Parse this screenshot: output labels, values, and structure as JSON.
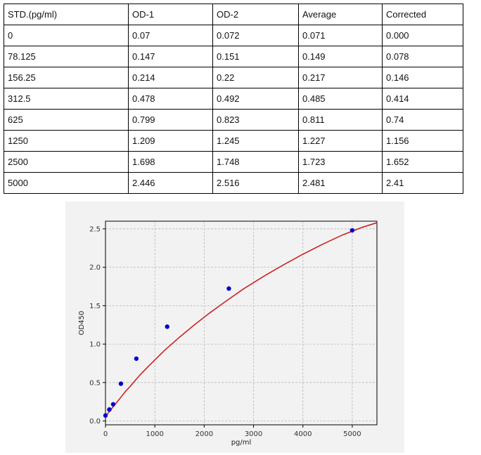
{
  "table": {
    "headers": [
      "STD.(pg/ml)",
      "OD-1",
      "OD-2",
      "Average",
      "Corrected"
    ],
    "rows": [
      [
        "0",
        "0.07",
        "0.072",
        "0.071",
        "0.000"
      ],
      [
        "78.125",
        "0.147",
        "0.151",
        "0.149",
        "0.078"
      ],
      [
        "156.25",
        "0.214",
        "0.22",
        "0.217",
        "0.146"
      ],
      [
        "312.5",
        "0.478",
        "0.492",
        "0.485",
        "0.414"
      ],
      [
        "625",
        "0.799",
        "0.823",
        "0.811",
        "0.74"
      ],
      [
        "1250",
        "1.209",
        "1.245",
        "1.227",
        "1.156"
      ],
      [
        "2500",
        "1.698",
        "1.748",
        "1.723",
        "1.652"
      ],
      [
        "5000",
        "2.446",
        "2.516",
        "2.481",
        "2.41"
      ]
    ]
  },
  "chart_data": {
    "type": "scatter",
    "title": "",
    "xlabel": "pg/ml",
    "ylabel": "OD450",
    "xlim": [
      0,
      5500
    ],
    "ylim": [
      -0.05,
      2.6
    ],
    "xticks": [
      0,
      1000,
      2000,
      3000,
      4000,
      5000
    ],
    "yticks": [
      0.0,
      0.5,
      1.0,
      1.5,
      2.0,
      2.5
    ],
    "grid": true,
    "series": [
      {
        "kind": "points",
        "color": "#0000cc",
        "x": [
          0,
          78.125,
          156.25,
          312.5,
          625,
          1250,
          2500,
          5000
        ],
        "y": [
          0.071,
          0.149,
          0.217,
          0.485,
          0.811,
          1.227,
          1.723,
          2.481
        ]
      },
      {
        "kind": "fit_curve",
        "color": "#cc2222",
        "x": [
          0,
          50,
          100,
          200,
          300,
          400,
          500,
          700,
          900,
          1200,
          1500,
          1800,
          2100,
          2400,
          2800,
          3200,
          3600,
          4000,
          4400,
          4800,
          5200,
          5500
        ],
        "y": [
          0.06,
          0.1,
          0.14,
          0.22,
          0.3,
          0.38,
          0.45,
          0.6,
          0.73,
          0.92,
          1.09,
          1.25,
          1.4,
          1.54,
          1.72,
          1.88,
          2.03,
          2.17,
          2.3,
          2.42,
          2.52,
          2.58
        ]
      }
    ]
  }
}
